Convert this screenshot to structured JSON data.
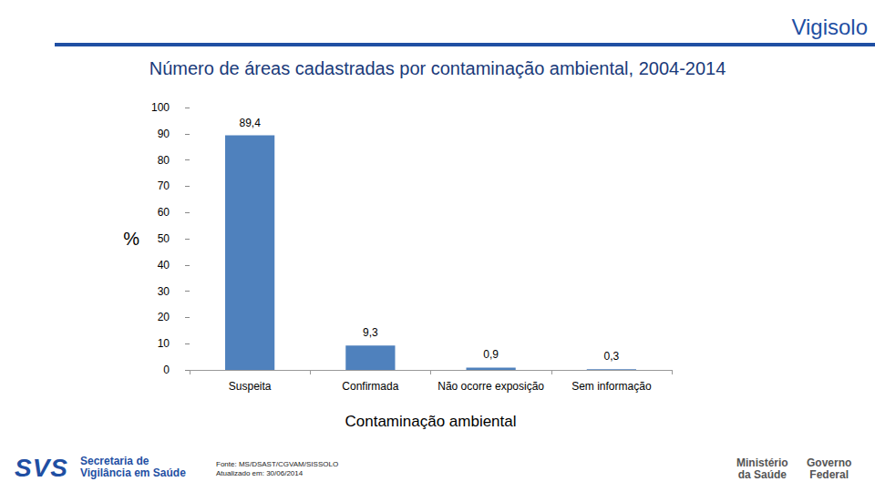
{
  "header": {
    "title": "Vigisolo"
  },
  "chart_data": {
    "type": "bar",
    "title": "Número de áreas cadastradas por contaminação ambiental, 2004-2014",
    "x_label": "Contaminação ambiental",
    "y_label": "%",
    "categories": [
      "Suspeita",
      "Confirmada",
      "Não ocorre exposição",
      "Sem informação"
    ],
    "values": [
      89.4,
      9.3,
      0.9,
      0.3
    ],
    "value_labels": [
      "89,4",
      "9,3",
      "0,9",
      "0,3"
    ],
    "data_labels": true,
    "color": "#4f81bd",
    "ylim": [
      0,
      100
    ],
    "yticks": [
      0,
      10,
      20,
      30,
      40,
      50,
      60,
      70,
      80,
      90,
      100
    ],
    "grid": false
  },
  "footer": {
    "logo_left": [
      "SVS",
      "Secretaria de",
      "Vigilância em Saúde"
    ],
    "source": [
      "Fonte: MS/DSAST/CGVAM/SISSOLO",
      "Atualizado em: 30/06/2014"
    ],
    "logo_right": [
      [
        "Ministério",
        "da Saúde"
      ],
      [
        "Governo",
        "Federal"
      ]
    ]
  }
}
